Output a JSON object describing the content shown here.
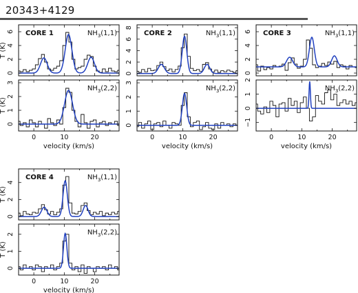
{
  "page": {
    "title": "20343+4129"
  },
  "colors": {
    "model": "#1f3fbf",
    "data": "#111111"
  },
  "chart_data": [
    {
      "core": "CORE 1",
      "transition": "NH₃(1,1)",
      "type": "line",
      "xlim": [
        -5,
        28
      ],
      "ylim": [
        -0.4,
        7
      ],
      "xticks": [
        0,
        10,
        20
      ],
      "yticks": [
        0,
        2,
        4,
        6
      ],
      "ylabel": "T (K)",
      "xlabel": "",
      "observed": {
        "x": [
          -5,
          -4,
          -3,
          -2,
          -1,
          0,
          1,
          2,
          3,
          4,
          5,
          6,
          7,
          8,
          9,
          10,
          11,
          12,
          13,
          14,
          15,
          16,
          17,
          18,
          19,
          20,
          21,
          22,
          23,
          24,
          25,
          26,
          27,
          28
        ],
        "y": [
          0.3,
          0.2,
          0.5,
          0.2,
          0.4,
          0.6,
          1.2,
          2.1,
          2.7,
          1.6,
          0.6,
          0.4,
          0.7,
          1.0,
          1.8,
          4.0,
          5.9,
          4.5,
          2.0,
          0.6,
          0.8,
          1.0,
          2.0,
          2.6,
          2.4,
          1.0,
          0.3,
          0.1,
          0.6,
          0.2,
          0.7,
          0.3,
          0.2,
          0.4
        ]
      },
      "model": {
        "components": [
          {
            "center": 3.3,
            "amp": 2.2,
            "width": 1.1
          },
          {
            "center": 11.4,
            "amp": 5.6,
            "width": 1.1
          },
          {
            "center": 18.8,
            "amp": 2.3,
            "width": 1.1
          }
        ]
      }
    },
    {
      "core": "",
      "transition": "NH₃(2,2)",
      "type": "line",
      "xlim": [
        -5,
        28
      ],
      "ylim": [
        -0.5,
        3.2
      ],
      "xticks": [
        0,
        10,
        20
      ],
      "yticks": [
        0,
        1,
        2,
        3
      ],
      "ylabel": "T (K)",
      "xlabel": "velocity (km/s)",
      "observed": {
        "x": [
          -5,
          -4,
          -3,
          -2,
          -1,
          0,
          1,
          2,
          3,
          4,
          5,
          6,
          7,
          8,
          9,
          10,
          11,
          12,
          13,
          14,
          15,
          16,
          17,
          18,
          19,
          20,
          21,
          22,
          23,
          24,
          25,
          26,
          27,
          28
        ],
        "y": [
          0.2,
          -0.1,
          0.1,
          -0.2,
          0.3,
          0.1,
          -0.2,
          0.2,
          0.0,
          -0.3,
          0.4,
          0.1,
          -0.1,
          0.3,
          0.0,
          1.2,
          2.6,
          2.3,
          1.0,
          0.2,
          -0.2,
          0.7,
          0.1,
          -0.3,
          0.2,
          0.3,
          -0.2,
          0.1,
          0.2,
          -0.1,
          0.1,
          0.0,
          0.2,
          -0.1
        ]
      },
      "model": {
        "components": [
          {
            "center": 11.4,
            "amp": 2.45,
            "width": 1.3
          }
        ]
      }
    },
    {
      "core": "CORE 2",
      "transition": "NH₃(1,1)",
      "type": "line",
      "xlim": [
        -5,
        28
      ],
      "ylim": [
        -0.4,
        8.5
      ],
      "xticks": [
        0,
        10,
        20
      ],
      "yticks": [
        0,
        2,
        4,
        6,
        8
      ],
      "ylabel": "",
      "xlabel": "",
      "observed": {
        "x": [
          -5,
          -4,
          -3,
          -2,
          -1,
          0,
          1,
          2,
          3,
          4,
          5,
          6,
          7,
          8,
          9,
          10,
          11,
          12,
          13,
          14,
          15,
          16,
          17,
          18,
          19,
          20,
          21,
          22,
          23,
          24,
          25,
          26,
          27,
          28
        ],
        "y": [
          0.4,
          0.2,
          0.7,
          0.3,
          0.9,
          0.5,
          0.6,
          1.4,
          2.0,
          1.2,
          0.5,
          0.8,
          0.3,
          0.7,
          1.3,
          4.5,
          6.9,
          3.0,
          0.9,
          0.5,
          0.7,
          0.4,
          1.6,
          1.9,
          0.8,
          0.3,
          0.6,
          0.2,
          0.5,
          0.3,
          0.6,
          0.4,
          0.2,
          0.5
        ]
      },
      "model": {
        "components": [
          {
            "center": 3.0,
            "amp": 1.6,
            "width": 1.0
          },
          {
            "center": 10.6,
            "amp": 6.5,
            "width": 0.75
          },
          {
            "center": 18.0,
            "amp": 1.6,
            "width": 0.9
          }
        ]
      }
    },
    {
      "core": "",
      "transition": "NH₃(2,2)",
      "type": "line",
      "xlim": [
        -5,
        28
      ],
      "ylim": [
        -0.4,
        3.2
      ],
      "xticks": [
        0,
        10,
        20
      ],
      "yticks": [
        0,
        1,
        2,
        3
      ],
      "ylabel": "",
      "xlabel": "velocity (km/s)",
      "observed": {
        "x": [
          -5,
          -4,
          -3,
          -2,
          -1,
          0,
          1,
          2,
          3,
          4,
          5,
          6,
          7,
          8,
          9,
          10,
          11,
          12,
          13,
          14,
          15,
          16,
          17,
          18,
          19,
          20,
          21,
          22,
          23,
          24,
          25,
          26,
          27,
          28
        ],
        "y": [
          -0.1,
          0.2,
          -0.2,
          0.1,
          0.3,
          -0.3,
          0.1,
          0.2,
          -0.1,
          0.3,
          0.0,
          -0.2,
          0.2,
          0.1,
          0.0,
          1.4,
          2.3,
          0.6,
          -0.1,
          0.2,
          0.3,
          -0.3,
          -0.1,
          0.2,
          -0.2,
          -0.3,
          0.1,
          -0.2,
          0.2,
          0.0,
          0.1,
          -0.1,
          0.1,
          0.0
        ]
      },
      "model": {
        "components": [
          {
            "center": 10.6,
            "amp": 2.25,
            "width": 0.7
          }
        ]
      }
    },
    {
      "core": "CORE 3",
      "transition": "NH₃(1,1)",
      "type": "line",
      "xlim": [
        -5,
        28
      ],
      "ylim": [
        -0.4,
        7
      ],
      "xticks": [
        0,
        10,
        20
      ],
      "yticks": [
        0,
        2,
        4,
        6
      ],
      "ylabel": "",
      "xlabel": "",
      "observed": {
        "x": [
          -5,
          -4,
          -3,
          -2,
          -1,
          0,
          1,
          2,
          3,
          4,
          5,
          6,
          7,
          8,
          9,
          10,
          11,
          12,
          13,
          14,
          15,
          16,
          17,
          18,
          19,
          20,
          21,
          22,
          23,
          24,
          25,
          26,
          27,
          28
        ],
        "y": [
          1.2,
          0.3,
          1.0,
          0.5,
          0.8,
          0.6,
          1.1,
          0.9,
          1.0,
          1.3,
          0.4,
          1.5,
          2.2,
          1.3,
          0.7,
          1.0,
          2.0,
          4.8,
          3.6,
          1.2,
          0.8,
          1.0,
          1.4,
          1.1,
          1.6,
          1.3,
          1.7,
          0.8,
          1.2,
          1.0,
          0.6,
          1.1,
          0.9,
          0.8
        ]
      },
      "model": {
        "components": [
          {
            "center": 6.0,
            "amp": 1.4,
            "width": 1.0
          },
          {
            "center": 13.3,
            "amp": 4.3,
            "width": 0.8
          },
          {
            "center": 20.7,
            "amp": 1.6,
            "width": 0.9
          }
        ],
        "baseline": 0.9
      }
    },
    {
      "core": "",
      "transition": "NH₃(2,2)",
      "type": "line",
      "xlim": [
        -5,
        28
      ],
      "ylim": [
        -1.6,
        2.0
      ],
      "xticks": [
        0,
        10,
        20
      ],
      "yticks": [
        -1,
        0,
        1,
        2
      ],
      "ylabel": "",
      "xlabel": "velocity (km/s)",
      "observed": {
        "x": [
          -5,
          -4,
          -3,
          -2,
          -1,
          0,
          1,
          2,
          3,
          4,
          5,
          6,
          7,
          8,
          9,
          10,
          11,
          12,
          13,
          14,
          15,
          16,
          17,
          18,
          19,
          20,
          21,
          22,
          23,
          24,
          25,
          26,
          27,
          28
        ],
        "y": [
          0.3,
          -0.2,
          -0.4,
          0.1,
          -0.3,
          0.5,
          0.2,
          -0.6,
          0.3,
          0.4,
          -0.2,
          0.7,
          0.2,
          0.5,
          -0.3,
          0.4,
          0.8,
          0.0,
          -0.9,
          -0.6,
          0.9,
          0.5,
          0.3,
          1.1,
          1.3,
          0.6,
          1.0,
          0.2,
          0.4,
          0.6,
          0.3,
          0.5,
          0.2,
          0.4
        ]
      },
      "model": {
        "components": [
          {
            "center": 12.6,
            "amp": 1.9,
            "width": 0.22
          }
        ]
      }
    },
    {
      "core": "CORE 4",
      "transition": "NH₃(1,1)",
      "type": "line",
      "xlim": [
        -5,
        28
      ],
      "ylim": [
        -0.4,
        5.6
      ],
      "xticks": [
        0,
        10,
        20
      ],
      "yticks": [
        0,
        2,
        4
      ],
      "ylabel": "T (K)",
      "xlabel": "",
      "observed": {
        "x": [
          -5,
          -4,
          -3,
          -2,
          -1,
          0,
          1,
          2,
          3,
          4,
          5,
          6,
          7,
          8,
          9,
          10,
          11,
          12,
          13,
          14,
          15,
          16,
          17,
          18,
          19,
          20,
          21,
          22,
          23,
          24,
          25,
          26,
          27,
          28
        ],
        "y": [
          0.4,
          0.1,
          0.6,
          0.3,
          0.2,
          0.5,
          0.4,
          0.9,
          1.4,
          0.8,
          0.3,
          0.6,
          0.2,
          0.5,
          0.9,
          3.7,
          4.7,
          1.6,
          0.4,
          0.3,
          0.6,
          1.3,
          1.6,
          0.7,
          0.2,
          0.5,
          0.3,
          0.6,
          0.1,
          0.4,
          0.2,
          0.5,
          0.3,
          0.6
        ]
      },
      "model": {
        "components": [
          {
            "center": 3.4,
            "amp": 1.1,
            "width": 0.9
          },
          {
            "center": 10.3,
            "amp": 4.2,
            "width": 0.7
          },
          {
            "center": 17.0,
            "amp": 1.3,
            "width": 0.8
          }
        ]
      }
    },
    {
      "core": "",
      "transition": "NH₃(2,2)",
      "type": "line",
      "xlim": [
        -5,
        28
      ],
      "ylim": [
        -0.4,
        2.6
      ],
      "xticks": [
        0,
        10,
        20
      ],
      "yticks": [
        0,
        1,
        2
      ],
      "ylabel": "T (K)",
      "xlabel": "velocity (km/s)",
      "observed": {
        "x": [
          -5,
          -4,
          -3,
          -2,
          -1,
          0,
          1,
          2,
          3,
          4,
          5,
          6,
          7,
          8,
          9,
          10,
          11,
          12,
          13,
          14,
          15,
          16,
          17,
          18,
          19,
          20,
          21,
          22,
          23,
          24,
          25,
          26,
          27,
          28
        ],
        "y": [
          0.1,
          -0.1,
          0.2,
          0.0,
          0.1,
          -0.1,
          0.2,
          0.1,
          -0.2,
          0.1,
          0.0,
          0.2,
          -0.1,
          0.1,
          0.3,
          1.6,
          2.0,
          0.3,
          -0.1,
          0.1,
          -0.2,
          0.2,
          -0.3,
          0.1,
          0.0,
          -0.2,
          0.1,
          0.0,
          0.1,
          -0.1,
          0.2,
          0.0,
          0.1,
          -0.1
        ]
      },
      "model": {
        "components": [
          {
            "center": 10.3,
            "amp": 2.05,
            "width": 0.55
          }
        ]
      }
    }
  ]
}
